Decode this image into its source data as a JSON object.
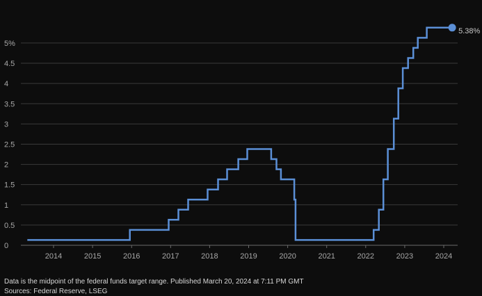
{
  "chart_data": {
    "type": "line",
    "step": true,
    "title": "",
    "xlabel": "",
    "ylabel": "",
    "x_ticks": [
      "2014",
      "2015",
      "2016",
      "2017",
      "2018",
      "2019",
      "2020",
      "2021",
      "2022",
      "2023",
      "2024"
    ],
    "y_ticks": [
      {
        "value": 0,
        "label": "0"
      },
      {
        "value": 0.5,
        "label": "0.5"
      },
      {
        "value": 1,
        "label": "1"
      },
      {
        "value": 1.5,
        "label": "1.5"
      },
      {
        "value": 2,
        "label": "2"
      },
      {
        "value": 2.5,
        "label": "2.5"
      },
      {
        "value": 3,
        "label": "3"
      },
      {
        "value": 3.5,
        "label": "3.5"
      },
      {
        "value": 4,
        "label": "4"
      },
      {
        "value": 4.5,
        "label": "4.5"
      },
      {
        "value": 5,
        "label": "5%"
      }
    ],
    "xlim": [
      "2013-05-01",
      "2024-03-20"
    ],
    "ylim": [
      0,
      5.6
    ],
    "grid": true,
    "series": [
      {
        "color": "#5b8fd6",
        "points": [
          {
            "date": "2013-05-01",
            "value": 0.13
          },
          {
            "date": "2015-12-16",
            "value": 0.38
          },
          {
            "date": "2016-12-14",
            "value": 0.63
          },
          {
            "date": "2017-03-15",
            "value": 0.88
          },
          {
            "date": "2017-06-14",
            "value": 1.13
          },
          {
            "date": "2017-12-13",
            "value": 1.38
          },
          {
            "date": "2018-03-21",
            "value": 1.63
          },
          {
            "date": "2018-06-13",
            "value": 1.88
          },
          {
            "date": "2018-09-26",
            "value": 2.13
          },
          {
            "date": "2018-12-19",
            "value": 2.38
          },
          {
            "date": "2019-07-31",
            "value": 2.13
          },
          {
            "date": "2019-09-18",
            "value": 1.88
          },
          {
            "date": "2019-10-30",
            "value": 1.63
          },
          {
            "date": "2020-03-03",
            "value": 1.13
          },
          {
            "date": "2020-03-15",
            "value": 0.13
          },
          {
            "date": "2022-03-16",
            "value": 0.38
          },
          {
            "date": "2022-05-04",
            "value": 0.88
          },
          {
            "date": "2022-06-15",
            "value": 1.63
          },
          {
            "date": "2022-07-27",
            "value": 2.38
          },
          {
            "date": "2022-09-21",
            "value": 3.13
          },
          {
            "date": "2022-11-02",
            "value": 3.88
          },
          {
            "date": "2022-12-14",
            "value": 4.38
          },
          {
            "date": "2023-02-01",
            "value": 4.63
          },
          {
            "date": "2023-03-22",
            "value": 4.88
          },
          {
            "date": "2023-05-03",
            "value": 5.13
          },
          {
            "date": "2023-07-26",
            "value": 5.38
          },
          {
            "date": "2024-03-20",
            "value": 5.38
          }
        ]
      }
    ],
    "end_label": "5.38%"
  },
  "footer": {
    "note": "Data is the midpoint of the federal funds target range. Published March 20, 2024 at 7:11 PM GMT",
    "source": "Sources: Federal Reserve, LSEG"
  }
}
